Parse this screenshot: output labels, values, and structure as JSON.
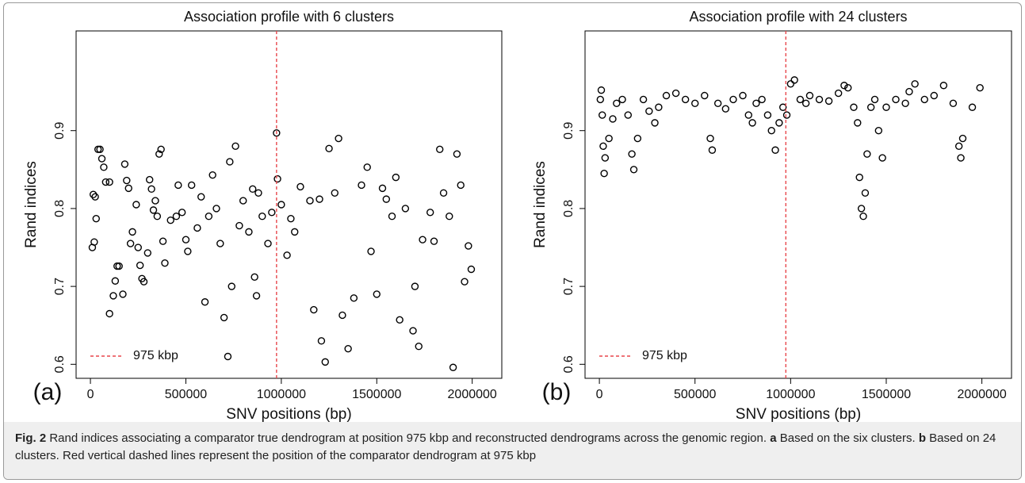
{
  "chart_data": [
    {
      "type": "scatter",
      "panel_label": "(a)",
      "title": "Association profile with 6 clusters",
      "x_label": "SNV positions (bp)",
      "y_label": "Rand indices",
      "xlim": [
        -75000,
        2155000
      ],
      "ylim": [
        0.582,
        1.028
      ],
      "xticks": [
        0,
        500000,
        1000000,
        1500000,
        2000000
      ],
      "yticks": [
        0.6,
        0.7,
        0.8,
        0.9
      ],
      "color": "#000000",
      "vline": {
        "x": 975000,
        "label": "975 kbp",
        "color": "#e8474c"
      },
      "x": [
        10000,
        15000,
        20000,
        25000,
        30000,
        40000,
        50000,
        60000,
        70000,
        80000,
        100000,
        100000,
        120000,
        130000,
        140000,
        150000,
        170000,
        180000,
        190000,
        200000,
        210000,
        220000,
        240000,
        250000,
        260000,
        270000,
        280000,
        300000,
        310000,
        320000,
        330000,
        340000,
        350000,
        360000,
        370000,
        380000,
        390000,
        420000,
        450000,
        460000,
        480000,
        500000,
        510000,
        530000,
        560000,
        580000,
        600000,
        620000,
        640000,
        660000,
        680000,
        700000,
        720000,
        730000,
        740000,
        760000,
        780000,
        800000,
        830000,
        850000,
        860000,
        870000,
        880000,
        900000,
        930000,
        950000,
        975000,
        980000,
        1000000,
        1030000,
        1050000,
        1070000,
        1100000,
        1150000,
        1170000,
        1200000,
        1210000,
        1230000,
        1250000,
        1280000,
        1300000,
        1320000,
        1350000,
        1380000,
        1420000,
        1450000,
        1470000,
        1500000,
        1530000,
        1550000,
        1580000,
        1600000,
        1620000,
        1650000,
        1690000,
        1700000,
        1720000,
        1740000,
        1780000,
        1800000,
        1830000,
        1850000,
        1880000,
        1900000,
        1920000,
        1940000,
        1960000,
        1980000,
        1995000
      ],
      "values": [
        0.75,
        0.818,
        0.757,
        0.815,
        0.787,
        0.876,
        0.876,
        0.864,
        0.853,
        0.834,
        0.834,
        0.665,
        0.688,
        0.707,
        0.726,
        0.726,
        0.69,
        0.857,
        0.836,
        0.826,
        0.755,
        0.77,
        0.805,
        0.75,
        0.727,
        0.71,
        0.706,
        0.743,
        0.837,
        0.825,
        0.798,
        0.81,
        0.79,
        0.87,
        0.876,
        0.758,
        0.73,
        0.785,
        0.79,
        0.83,
        0.795,
        0.76,
        0.745,
        0.83,
        0.775,
        0.815,
        0.68,
        0.79,
        0.843,
        0.8,
        0.755,
        0.66,
        0.61,
        0.86,
        0.7,
        0.88,
        0.778,
        0.81,
        0.77,
        0.825,
        0.712,
        0.688,
        0.82,
        0.79,
        0.755,
        0.795,
        0.897,
        0.838,
        0.805,
        0.74,
        0.787,
        0.77,
        0.828,
        0.81,
        0.67,
        0.812,
        0.63,
        0.603,
        0.877,
        0.82,
        0.89,
        0.663,
        0.62,
        0.685,
        0.83,
        0.853,
        0.745,
        0.69,
        0.826,
        0.812,
        0.79,
        0.84,
        0.657,
        0.8,
        0.643,
        0.7,
        0.623,
        0.76,
        0.795,
        0.758,
        0.876,
        0.82,
        0.79,
        0.596,
        0.87,
        0.83,
        0.706,
        0.752,
        0.722
      ]
    },
    {
      "type": "scatter",
      "panel_label": "(b)",
      "title": "Association profile with 24 clusters",
      "x_label": "SNV positions (bp)",
      "y_label": "Rand indices",
      "xlim": [
        -75000,
        2155000
      ],
      "ylim": [
        0.582,
        1.028
      ],
      "xticks": [
        0,
        500000,
        1000000,
        1500000,
        2000000
      ],
      "yticks": [
        0.6,
        0.7,
        0.8,
        0.9
      ],
      "color": "#000000",
      "vline": {
        "x": 975000,
        "label": "975 kbp",
        "color": "#e8474c"
      },
      "x": [
        5000,
        10000,
        15000,
        20000,
        25000,
        30000,
        50000,
        70000,
        90000,
        120000,
        150000,
        170000,
        180000,
        200000,
        230000,
        260000,
        290000,
        310000,
        350000,
        400000,
        450000,
        500000,
        550000,
        580000,
        590000,
        620000,
        660000,
        700000,
        750000,
        780000,
        800000,
        820000,
        850000,
        880000,
        900000,
        920000,
        940000,
        960000,
        980000,
        1000000,
        1020000,
        1050000,
        1080000,
        1100000,
        1150000,
        1200000,
        1250000,
        1280000,
        1300000,
        1330000,
        1350000,
        1360000,
        1370000,
        1380000,
        1390000,
        1400000,
        1420000,
        1440000,
        1460000,
        1480000,
        1500000,
        1550000,
        1600000,
        1620000,
        1650000,
        1700000,
        1750000,
        1800000,
        1850000,
        1880000,
        1890000,
        1900000,
        1950000,
        1990000
      ],
      "values": [
        0.94,
        0.952,
        0.92,
        0.88,
        0.845,
        0.865,
        0.89,
        0.915,
        0.935,
        0.94,
        0.92,
        0.87,
        0.85,
        0.89,
        0.94,
        0.925,
        0.91,
        0.93,
        0.945,
        0.948,
        0.94,
        0.935,
        0.945,
        0.89,
        0.875,
        0.935,
        0.928,
        0.94,
        0.945,
        0.92,
        0.91,
        0.935,
        0.94,
        0.92,
        0.9,
        0.875,
        0.91,
        0.93,
        0.92,
        0.96,
        0.965,
        0.94,
        0.935,
        0.945,
        0.94,
        0.938,
        0.948,
        0.958,
        0.955,
        0.93,
        0.91,
        0.84,
        0.8,
        0.79,
        0.82,
        0.87,
        0.93,
        0.94,
        0.9,
        0.865,
        0.93,
        0.94,
        0.935,
        0.95,
        0.96,
        0.94,
        0.945,
        0.958,
        0.935,
        0.88,
        0.865,
        0.89,
        0.93,
        0.955
      ]
    }
  ],
  "caption": {
    "label": "Fig. 2",
    "text": "Rand indices associating a comparator true dendrogram at position 975 kbp and reconstructed dendrograms across the genomic region.",
    "a": "a",
    "a_text": "Based on the six clusters.",
    "b": "b",
    "b_text": "Based on 24 clusters. Red vertical dashed lines represent the position of the comparator dendrogram at 975 kbp"
  }
}
